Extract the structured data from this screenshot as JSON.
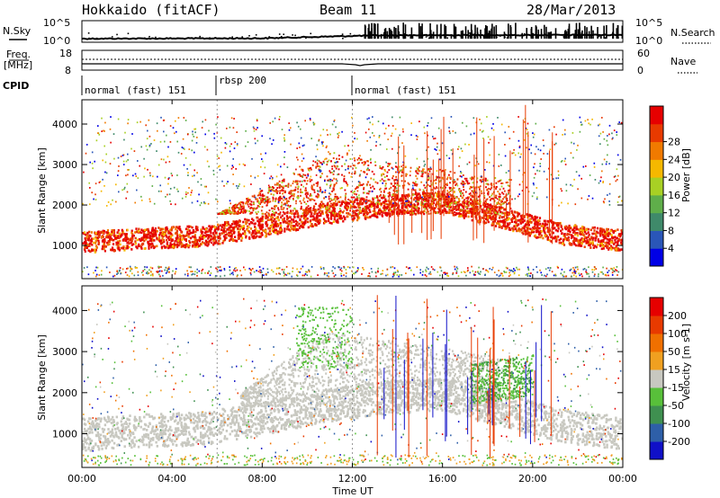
{
  "header": {
    "radar": "Hokkaido (fitACF)",
    "beam": "Beam 11",
    "date": "28/Mar/2013"
  },
  "status_labels": {
    "nsky": "N.Sky",
    "nsearch": "N.Search",
    "freq_line1": "Freq.",
    "freq_line2": "[MHz]",
    "nave": "Nave",
    "cpid": "CPID"
  },
  "noise_panel": {
    "left_ticks": [
      "10^5",
      "10^0"
    ],
    "right_ticks": [
      "10^5",
      "10^0"
    ]
  },
  "freq_panel": {
    "left_ticks": [
      "18",
      "8"
    ],
    "right_ticks": [
      "60",
      "0"
    ]
  },
  "cpid_segments": [
    {
      "label": "normal (fast) 151",
      "start_hour": 0
    },
    {
      "label": "rbsp 200",
      "start_hour": 6
    },
    {
      "label": "normal (fast) 151",
      "start_hour": 12
    }
  ],
  "chart_data": [
    {
      "type": "heatmap",
      "name": "power-panel",
      "ylabel": "Slant Range [km]",
      "xlabel": "Time UT",
      "x_range_hours": [
        0,
        24
      ],
      "x_ticks": [
        "00:00",
        "04:00",
        "08:00",
        "12:00",
        "16:00",
        "20:00",
        "00:00"
      ],
      "ylim": [
        180,
        4600
      ],
      "y_ticks": [
        1000,
        2000,
        3000,
        4000
      ],
      "colorbar": {
        "label": "Power [dB]",
        "ticks": [
          "4",
          "8",
          "12",
          "16",
          "20",
          "24",
          "28"
        ],
        "colors": [
          "#0000e6",
          "#2a56b8",
          "#3f8a6a",
          "#5fae4a",
          "#a8d024",
          "#f5b800",
          "#f07a00",
          "#e83a00",
          "#e60000"
        ]
      },
      "features": [
        {
          "kind": "band",
          "from_hour": 0,
          "to_hour": 24,
          "range_km": [
            1100,
            1200,
            1250,
            1500,
            1800,
            2000,
            2100,
            1700,
            1300,
            1150
          ],
          "dominant": "28"
        },
        {
          "kind": "patch",
          "from_hour": 6.5,
          "to_hour": 12,
          "range_km": [
            1800,
            3700
          ],
          "dominant": "24"
        },
        {
          "kind": "patch",
          "from_hour": 12,
          "to_hour": 19,
          "range_km": [
            2000,
            3200
          ],
          "dominant": "28"
        }
      ]
    },
    {
      "type": "heatmap",
      "name": "velocity-panel",
      "ylabel": "Slant Range [km]",
      "xlabel": "Time UT",
      "x_range_hours": [
        0,
        24
      ],
      "x_ticks": [
        "00:00",
        "04:00",
        "08:00",
        "12:00",
        "16:00",
        "20:00",
        "00:00"
      ],
      "ylim": [
        180,
        4600
      ],
      "y_ticks": [
        1000,
        2000,
        3000,
        4000
      ],
      "colorbar": {
        "label": "Velocity [m s-1]",
        "ticks": [
          "200",
          "100",
          "50",
          "15",
          "-15",
          "-50",
          "-100",
          "-200"
        ],
        "colors": [
          "#1010c8",
          "#2e5fa8",
          "#3f9050",
          "#58c03a",
          "#c8c8c0",
          "#f0a020",
          "#f07000",
          "#e83a00",
          "#e60000"
        ]
      },
      "features": [
        {
          "kind": "ground_scatter",
          "from_hour": 0,
          "to_hour": 24,
          "range_km": [
            1000,
            1700
          ],
          "color": "#c8c8c0"
        },
        {
          "kind": "patch",
          "from_hour": 8,
          "to_hour": 18,
          "range_km": [
            1800,
            3600
          ],
          "color": "#c8c8c0"
        },
        {
          "kind": "patch",
          "from_hour": 17.5,
          "to_hour": 20,
          "range_km": [
            1800,
            2600
          ],
          "color": "#58c03a"
        }
      ]
    }
  ]
}
